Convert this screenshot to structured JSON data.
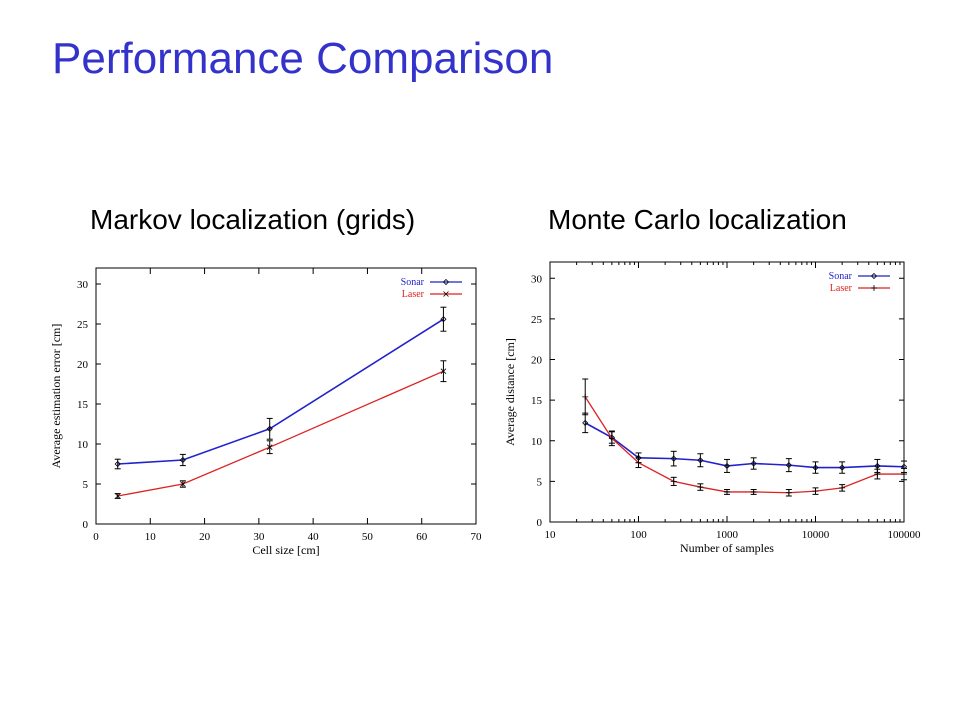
{
  "slide": {
    "title": "Performance Comparison",
    "left_subtitle": "Markov localization (grids)",
    "right_subtitle": "Monte Carlo localization"
  },
  "colors": {
    "title": "#3333cc",
    "sonar": "#2222cc",
    "laser": "#dd2222",
    "errorbar": "#000000"
  },
  "chart_data": [
    {
      "type": "line",
      "xlabel": "Cell size [cm]",
      "ylabel": "Average estimation error [cm]",
      "xlim": [
        0,
        70
      ],
      "ylim": [
        0,
        32
      ],
      "xticks": [
        0,
        10,
        20,
        30,
        40,
        50,
        60,
        70
      ],
      "yticks": [
        0,
        5,
        10,
        15,
        20,
        25,
        30
      ],
      "x_scale": "linear",
      "legend_position": "top-right",
      "x": [
        4,
        16,
        32,
        64
      ],
      "series": [
        {
          "name": "Sonar",
          "color": "#2222cc",
          "marker": "diamond",
          "values": [
            7.5,
            8.0,
            11.9,
            25.6
          ],
          "error": [
            0.6,
            0.7,
            1.3,
            1.5
          ]
        },
        {
          "name": "Laser",
          "color": "#dd2222",
          "marker": "x",
          "values": [
            3.5,
            5.0,
            9.6,
            19.1
          ],
          "error": [
            0.3,
            0.4,
            0.8,
            1.3
          ]
        }
      ]
    },
    {
      "type": "line",
      "xlabel": "Number of samples",
      "ylabel": "Average distance [cm]",
      "xlim": [
        10,
        100000
      ],
      "ylim": [
        0,
        32
      ],
      "xticks": [
        10,
        100,
        1000,
        10000,
        100000
      ],
      "xtick_labels": [
        "10",
        "100",
        "1000",
        "10000",
        "100000"
      ],
      "yticks": [
        0,
        5,
        10,
        15,
        20,
        25,
        30
      ],
      "x_scale": "log",
      "legend_position": "top-right",
      "x": [
        25,
        50,
        100,
        250,
        500,
        1000,
        2000,
        5000,
        10000,
        20000,
        50000,
        100000
      ],
      "series": [
        {
          "name": "Sonar",
          "color": "#2222cc",
          "marker": "diamond",
          "values": [
            12.2,
            10.4,
            7.9,
            7.8,
            7.6,
            6.9,
            7.2,
            7.0,
            6.7,
            6.7,
            6.9,
            6.8
          ],
          "error": [
            1.2,
            0.7,
            0.6,
            0.9,
            0.8,
            0.8,
            0.7,
            0.8,
            0.7,
            0.7,
            0.8,
            0.7
          ]
        },
        {
          "name": "Laser",
          "color": "#dd2222",
          "marker": "plus",
          "values": [
            15.4,
            10.3,
            7.3,
            5.0,
            4.3,
            3.7,
            3.7,
            3.6,
            3.8,
            4.2,
            5.9,
            5.9
          ],
          "error": [
            2.2,
            0.9,
            0.6,
            0.5,
            0.4,
            0.3,
            0.3,
            0.4,
            0.4,
            0.4,
            0.6,
            0.7
          ]
        }
      ]
    }
  ]
}
